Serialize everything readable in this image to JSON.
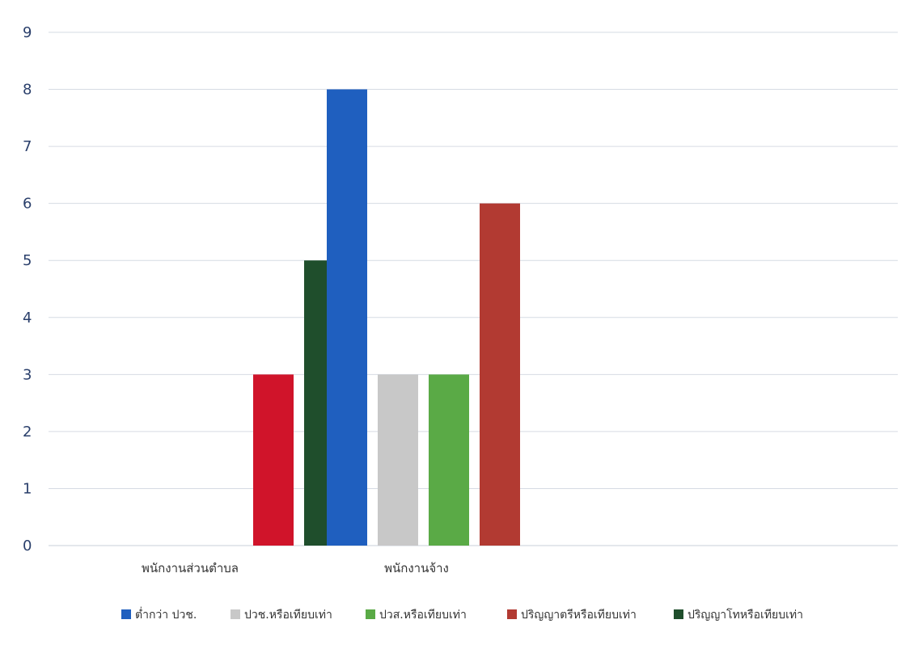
{
  "chart_data": {
    "type": "bar",
    "categories": [
      "พนักงานส่วนตำบล",
      "พนักงานจ้าง"
    ],
    "series": [
      {
        "name": "ต่ำกว่า ปวช.",
        "color": "#1f5fbf",
        "values": [
          0,
          8
        ]
      },
      {
        "name": "ปวช.หรือเทียบเท่า",
        "color": "#c8c8c8",
        "values": [
          0,
          3
        ]
      },
      {
        "name": "ปวส.หรือเทียบเท่า",
        "color": "#5aaa46",
        "values": [
          0,
          3
        ]
      },
      {
        "name": "ปริญญาตรีหรือเทียบเท่า",
        "color": "#b23a32",
        "values": [
          3,
          6
        ]
      },
      {
        "name": "ปริญญาโทหรือเทียบเท่า",
        "color": "#1f4e2c",
        "values": [
          5,
          0
        ]
      }
    ],
    "bar_colors_override": [
      [
        "#1f5fbf",
        "#c8c8c8",
        "#5aaa46",
        "#d0142a",
        "#1f4e2c"
      ],
      [
        "#1f5fbf",
        "#c8c8c8",
        "#5aaa46",
        "#b23a32",
        "#1f4e2c"
      ]
    ],
    "ylim": [
      0,
      9
    ],
    "yticks": [
      "0",
      "1",
      "2",
      "3",
      "4",
      "5",
      "6",
      "7",
      "8",
      "9"
    ],
    "grid": true,
    "legend_position": "bottom"
  }
}
